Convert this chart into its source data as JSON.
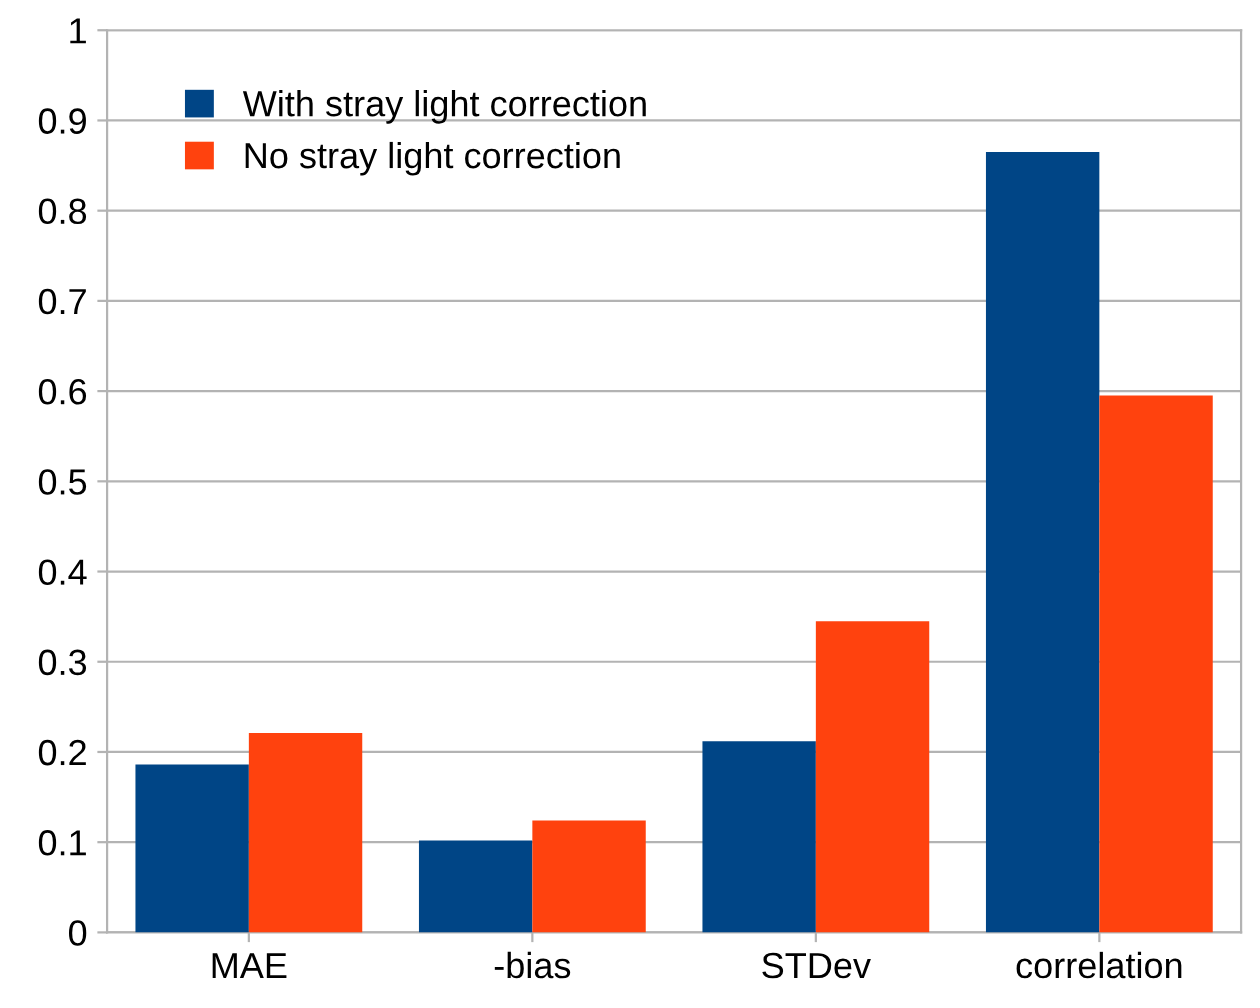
{
  "chart_data": {
    "type": "bar",
    "categories": [
      "MAE",
      "-bias",
      "STDev",
      "correlation"
    ],
    "series": [
      {
        "name": "With stray light correction",
        "color": "#004586",
        "values": [
          0.186,
          0.102,
          0.212,
          0.865
        ]
      },
      {
        "name": "No stray light correction",
        "color": "#ff420e",
        "values": [
          0.221,
          0.124,
          0.345,
          0.595
        ]
      }
    ],
    "ylim": [
      0,
      1
    ],
    "yticks": [
      0,
      0.1,
      0.2,
      0.3,
      0.4,
      0.5,
      0.6,
      0.7,
      0.8,
      0.9,
      1
    ],
    "grid": "y",
    "legend": "top left"
  }
}
